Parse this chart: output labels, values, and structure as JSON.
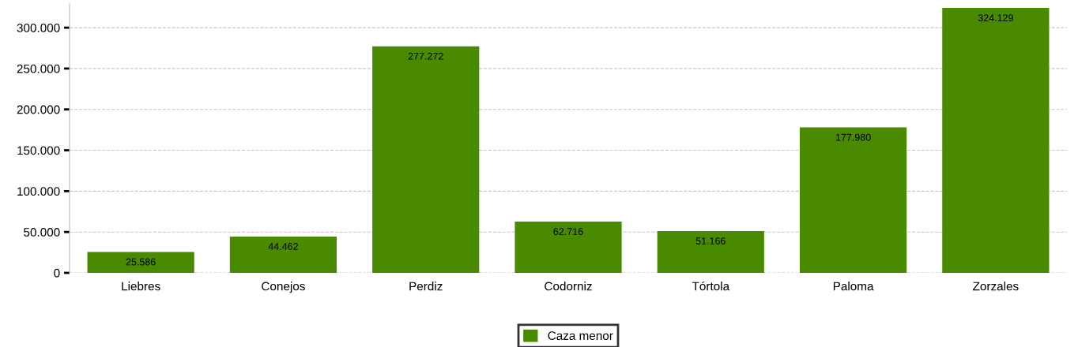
{
  "chart_data": {
    "type": "bar",
    "categories": [
      "Liebres",
      "Conejos",
      "Perdiz",
      "Codorniz",
      "Tórtola",
      "Paloma",
      "Zorzales"
    ],
    "series": [
      {
        "name": "Caza menor",
        "color": "#4a8a00",
        "values": [
          25586,
          44462,
          277272,
          62716,
          51166,
          177980,
          324129
        ],
        "value_labels": [
          "25.586",
          "44.462",
          "277.272",
          "62.716",
          "51.166",
          "177.980",
          "324.129"
        ]
      }
    ],
    "ylim": [
      0,
      330000
    ],
    "yticks": [
      {
        "value": 0,
        "label": "0"
      },
      {
        "value": 50000,
        "label": "50.000"
      },
      {
        "value": 100000,
        "label": "100.000"
      },
      {
        "value": 150000,
        "label": "150.000"
      },
      {
        "value": 200000,
        "label": "200.000"
      },
      {
        "value": 250000,
        "label": "250.000"
      },
      {
        "value": 300000,
        "label": "300.000"
      }
    ],
    "grid": "y",
    "legend": "bottom"
  }
}
